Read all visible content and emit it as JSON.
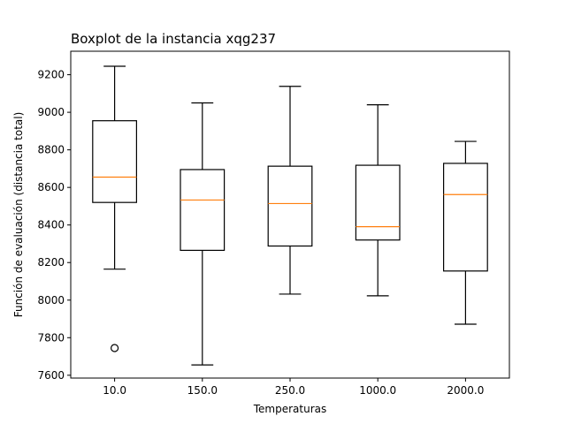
{
  "chart_data": {
    "type": "boxplot",
    "title": "Boxplot de la instancia xqg237",
    "xlabel": "Temperaturas",
    "ylabel": "Función de evaluación (distancia total)",
    "categories": [
      "10.0",
      "150.0",
      "250.0",
      "1000.0",
      "2000.0"
    ],
    "boxes": [
      {
        "category": "10.0",
        "whisker_low": 8165,
        "q1": 8520,
        "median": 8655,
        "q3": 8955,
        "whisker_high": 9245,
        "outliers": [
          7745
        ]
      },
      {
        "category": "150.0",
        "whisker_low": 7655,
        "q1": 8265,
        "median": 8533,
        "q3": 8695,
        "whisker_high": 9050,
        "outliers": []
      },
      {
        "category": "250.0",
        "whisker_low": 8032,
        "q1": 8288,
        "median": 8514,
        "q3": 8713,
        "whisker_high": 9138,
        "outliers": []
      },
      {
        "category": "1000.0",
        "whisker_low": 8023,
        "q1": 8320,
        "median": 8391,
        "q3": 8718,
        "whisker_high": 9040,
        "outliers": []
      },
      {
        "category": "2000.0",
        "whisker_low": 7872,
        "q1": 8155,
        "median": 8562,
        "q3": 8728,
        "whisker_high": 8845,
        "outliers": []
      }
    ],
    "yticks": [
      7600,
      7800,
      8000,
      8200,
      8400,
      8600,
      8800,
      9000,
      9200
    ],
    "ylim": [
      7585,
      9325
    ],
    "grid": false,
    "colors": {
      "box": "#000000",
      "median": "#ff7f0e",
      "background": "#ffffff"
    }
  }
}
